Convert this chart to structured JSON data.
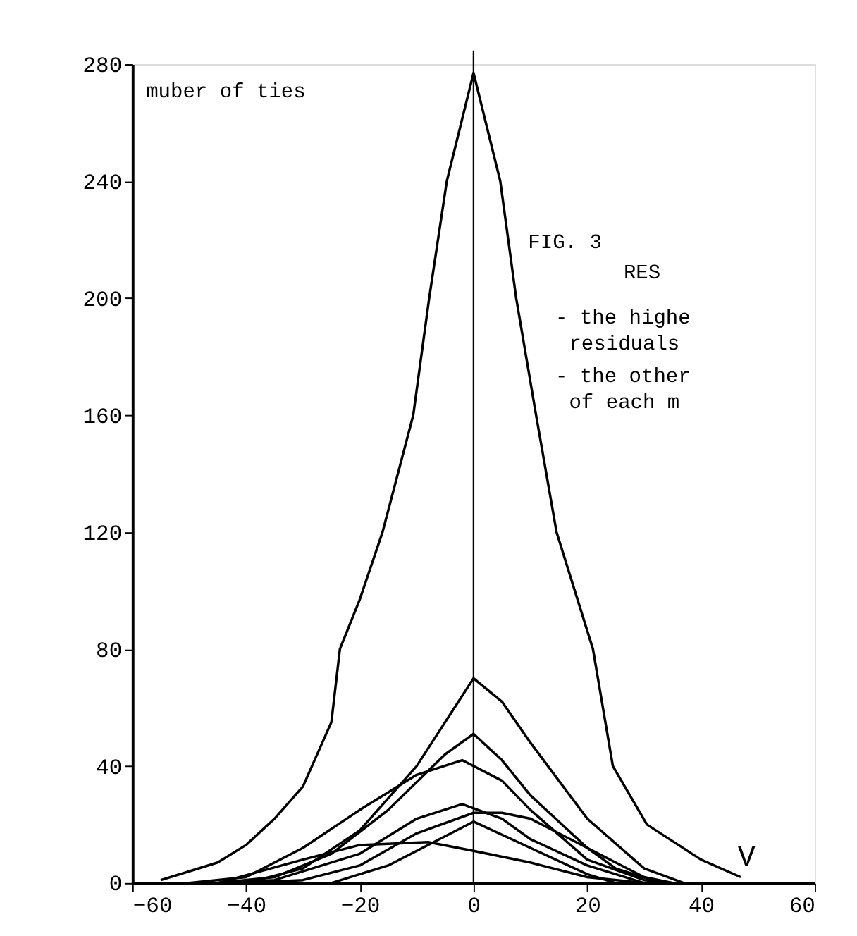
{
  "chart_data": {
    "type": "line",
    "xlabel": "V",
    "ylabel": "muber of ties",
    "xlim": [
      -60,
      60
    ],
    "xticks": [
      -60,
      -40,
      -20,
      0,
      20,
      40,
      60
    ],
    "ylim": [
      0,
      280
    ],
    "yticks": [
      0,
      40,
      80,
      120,
      160,
      200,
      240,
      280
    ],
    "grid": false,
    "legend": false,
    "marker": "none",
    "line_style": "solid",
    "ref_lines": [
      {
        "axis": "x",
        "value": 0,
        "color": "#000000"
      }
    ],
    "annotations": [
      "FIG. 3",
      "RES",
      "- the highe",
      "residuals",
      "- the other",
      "of each m"
    ],
    "series": [
      {
        "color": "#000000",
        "x": [
          -55,
          -50,
          -45,
          -40,
          -35,
          -30,
          -25,
          -23.5,
          -20,
          -16,
          -10.6,
          -7.8,
          -4.7,
          0,
          4.7,
          7.5,
          11,
          14.6,
          21,
          24.5,
          30.5,
          40,
          47
        ],
        "values": [
          1,
          4,
          7,
          13,
          22,
          33,
          55,
          80,
          97,
          120,
          160,
          200,
          240,
          277,
          240,
          200,
          160,
          120,
          80,
          40,
          20,
          8,
          2
        ]
      },
      {
        "color": "#000000",
        "x": [
          -40,
          -30,
          -20,
          -10,
          -5,
          0,
          5,
          10,
          20,
          30,
          37
        ],
        "values": [
          0,
          5,
          18,
          40,
          55,
          70,
          62,
          48,
          22,
          5,
          0
        ]
      },
      {
        "color": "#000000",
        "x": [
          -45,
          -35,
          -25,
          -15,
          -5,
          0,
          5,
          10,
          20,
          30,
          35
        ],
        "values": [
          0,
          2,
          10,
          25,
          44,
          51,
          42,
          30,
          12,
          2,
          0
        ]
      },
      {
        "color": "#000000",
        "x": [
          -50,
          -40,
          -30,
          -20,
          -10,
          -2,
          5,
          10,
          20,
          30,
          35
        ],
        "values": [
          0,
          2,
          12,
          25,
          37,
          42,
          35,
          25,
          8,
          1,
          0
        ]
      },
      {
        "color": "#000000",
        "x": [
          -45,
          -35,
          -20,
          -10,
          -2,
          5,
          10,
          20,
          30,
          35
        ],
        "values": [
          0,
          1,
          10,
          22,
          27,
          22,
          15,
          6,
          0,
          0
        ]
      },
      {
        "color": "#000000",
        "x": [
          -40,
          -30,
          -20,
          -10,
          0,
          5,
          10,
          20,
          25,
          33
        ],
        "values": [
          0,
          1,
          6,
          17,
          24,
          24,
          22,
          12,
          5,
          0
        ]
      },
      {
        "color": "#000000",
        "x": [
          -25,
          -15,
          -5,
          0,
          10,
          20,
          25
        ],
        "values": [
          0,
          6,
          16,
          21,
          12,
          3,
          0
        ]
      },
      {
        "color": "#000000",
        "x": [
          -45,
          -30,
          -20,
          -8,
          0,
          10,
          20,
          30
        ],
        "values": [
          0,
          8,
          13,
          14,
          11,
          7,
          2,
          0
        ]
      }
    ]
  }
}
